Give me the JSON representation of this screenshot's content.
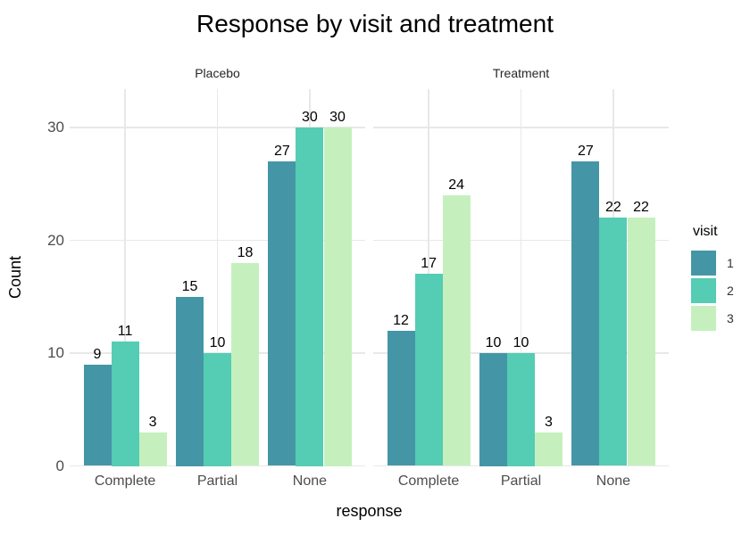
{
  "chart_data": {
    "type": "bar",
    "title": "Response by visit and treatment",
    "xlabel": "response",
    "ylabel": "Count",
    "categories": [
      "Complete",
      "Partial",
      "None"
    ],
    "yticks": [
      0,
      10,
      20,
      30
    ],
    "ylim": [
      0,
      33.4
    ],
    "grid": "major-only",
    "bar_value_labels": true,
    "legend": {
      "title": "visit",
      "position": "right",
      "entries": [
        "1",
        "2",
        "3"
      ]
    },
    "series_colors": [
      "#4496A6",
      "#55CCB4",
      "#C5F0BE"
    ],
    "facets": [
      {
        "label": "Placebo",
        "series": [
          {
            "name": "1",
            "values": [
              9,
              15,
              27
            ]
          },
          {
            "name": "2",
            "values": [
              11,
              10,
              30
            ]
          },
          {
            "name": "3",
            "values": [
              3,
              18,
              30
            ]
          }
        ]
      },
      {
        "label": "Treatment",
        "series": [
          {
            "name": "1",
            "values": [
              12,
              10,
              27
            ]
          },
          {
            "name": "2",
            "values": [
              17,
              10,
              22
            ]
          },
          {
            "name": "3",
            "values": [
              24,
              3,
              22
            ]
          }
        ]
      }
    ]
  }
}
